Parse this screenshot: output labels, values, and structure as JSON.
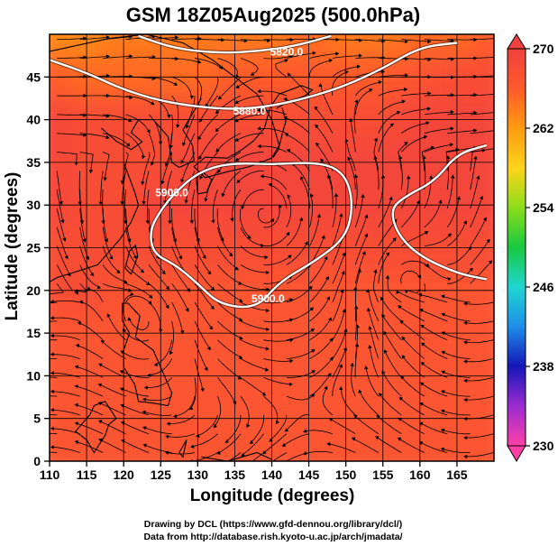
{
  "chart_data": {
    "type": "heatmap",
    "title": "GSM 18Z05Aug2025 (500.0hPa)",
    "xlabel": "Longitude (degrees)",
    "ylabel": "Latitude  (degrees)",
    "xlim": [
      110,
      170
    ],
    "ylim": [
      0,
      50
    ],
    "x_ticks": [
      "110",
      "115",
      "120",
      "125",
      "130",
      "135",
      "140",
      "145",
      "150",
      "155",
      "160",
      "165"
    ],
    "y_ticks": [
      "0",
      "5",
      "10",
      "15",
      "20",
      "25",
      "30",
      "35",
      "40",
      "45"
    ],
    "grid": true,
    "colorbar": {
      "min": 230,
      "max": 270,
      "labels": [
        "270",
        "262",
        "254",
        "246",
        "238",
        "230"
      ],
      "colors": [
        "#ff3fa6",
        "#9b2cd0",
        "#1515b8",
        "#1e8ee8",
        "#1fd6d0",
        "#18c940",
        "#8cdd1a",
        "#ffd41a",
        "#ff9a12",
        "#ff5a2a",
        "#f04040"
      ]
    },
    "contours": [
      {
        "label": "5880.0",
        "points": [
          [
            110,
            47.0
          ],
          [
            115,
            45.5
          ],
          [
            120,
            43.5
          ],
          [
            125,
            42.2
          ],
          [
            130,
            41.5
          ],
          [
            135,
            41.2
          ],
          [
            140,
            41.6
          ],
          [
            145,
            42.6
          ],
          [
            150,
            44.0
          ],
          [
            155,
            46.0
          ],
          [
            160,
            48.5
          ],
          [
            165,
            49.0
          ]
        ]
      },
      {
        "label": "5820.0",
        "points": [
          [
            122,
            49.8
          ],
          [
            127,
            48.3
          ],
          [
            133,
            47.8
          ],
          [
            138,
            48.0
          ],
          [
            143,
            48.6
          ],
          [
            148,
            49.8
          ]
        ]
      },
      {
        "label": "5900.0",
        "points": [
          [
            140,
            34.8
          ],
          [
            147,
            35.0
          ],
          [
            150,
            33.5
          ],
          [
            151,
            30.0
          ],
          [
            150,
            26.2
          ],
          [
            146,
            23.5
          ],
          [
            141,
            21.0
          ],
          [
            138,
            17.9
          ],
          [
            133,
            18.3
          ],
          [
            130,
            20.8
          ],
          [
            127,
            23.0
          ],
          [
            124,
            24.3
          ],
          [
            123.5,
            27.0
          ],
          [
            125,
            29.4
          ],
          [
            127,
            31.5
          ],
          [
            130,
            33.8
          ],
          [
            134,
            34.9
          ],
          [
            140,
            34.8
          ]
        ]
      },
      {
        "label": "",
        "points": [
          [
            169,
            37.0
          ],
          [
            165,
            36.0
          ],
          [
            162,
            32.8
          ],
          [
            158,
            31.0
          ],
          [
            156,
            29.5
          ],
          [
            157,
            26.5
          ],
          [
            160,
            24.0
          ],
          [
            165,
            22.0
          ],
          [
            169,
            21.3
          ]
        ]
      }
    ],
    "contour_label_positions": [
      {
        "text": "5880.0",
        "lon": 137,
        "lat": 40.6
      },
      {
        "text": "5820.0",
        "lon": 142,
        "lat": 47.5
      },
      {
        "text": "5900.0",
        "lon": 126.5,
        "lat": 31.0
      },
      {
        "text": "5900.0",
        "lon": 139.5,
        "lat": 18.6
      }
    ],
    "temperature_field": [
      {
        "lat": 50,
        "values": [
          263,
          263,
          264,
          264,
          264,
          264,
          264,
          265,
          264,
          264,
          265,
          265,
          266
        ]
      },
      {
        "lat": 45,
        "values": [
          266,
          265,
          265,
          265,
          265,
          266,
          266,
          266,
          266,
          266,
          267,
          268,
          268
        ]
      },
      {
        "lat": 40,
        "values": [
          269,
          268,
          268,
          268,
          268,
          268,
          268,
          268,
          268,
          268,
          269,
          269,
          269
        ]
      },
      {
        "lat": 35,
        "values": [
          269,
          268,
          268,
          268,
          269,
          269,
          269,
          269,
          269,
          269,
          269,
          269,
          269
        ]
      },
      {
        "lat": 30,
        "values": [
          269,
          268,
          268,
          269,
          269,
          269,
          269,
          269,
          269,
          269,
          269,
          269,
          269
        ]
      },
      {
        "lat": 25,
        "values": [
          268,
          268,
          268,
          268,
          268,
          268,
          268,
          268,
          268,
          268,
          268,
          268,
          268
        ]
      },
      {
        "lat": 20,
        "values": [
          268,
          268,
          267,
          267,
          267,
          267,
          267,
          267,
          267,
          267,
          267,
          267,
          267
        ]
      },
      {
        "lat": 15,
        "values": [
          267,
          267,
          267,
          267,
          267,
          267,
          267,
          267,
          267,
          267,
          267,
          267,
          267
        ]
      },
      {
        "lat": 10,
        "values": [
          267,
          267,
          267,
          267,
          267,
          267,
          267,
          267,
          267,
          267,
          267,
          267,
          267
        ]
      },
      {
        "lat": 5,
        "values": [
          267,
          267,
          267,
          267,
          267,
          267,
          267,
          267,
          267,
          267,
          267,
          267,
          267
        ]
      },
      {
        "lat": 0,
        "values": [
          267,
          267,
          267,
          267,
          267,
          267,
          267,
          267,
          267,
          267,
          267,
          267,
          267
        ]
      }
    ],
    "streamlines": "wind streamlines overlaid on temperature field with anticyclonic circulation centered near 139E 29N"
  },
  "credits": {
    "line1": "Drawing by DCL (https://www.gfd-dennou.org/library/dcl/)",
    "line2": "Data from http://database.rish.kyoto-u.ac.jp/arch/jmadata/"
  }
}
